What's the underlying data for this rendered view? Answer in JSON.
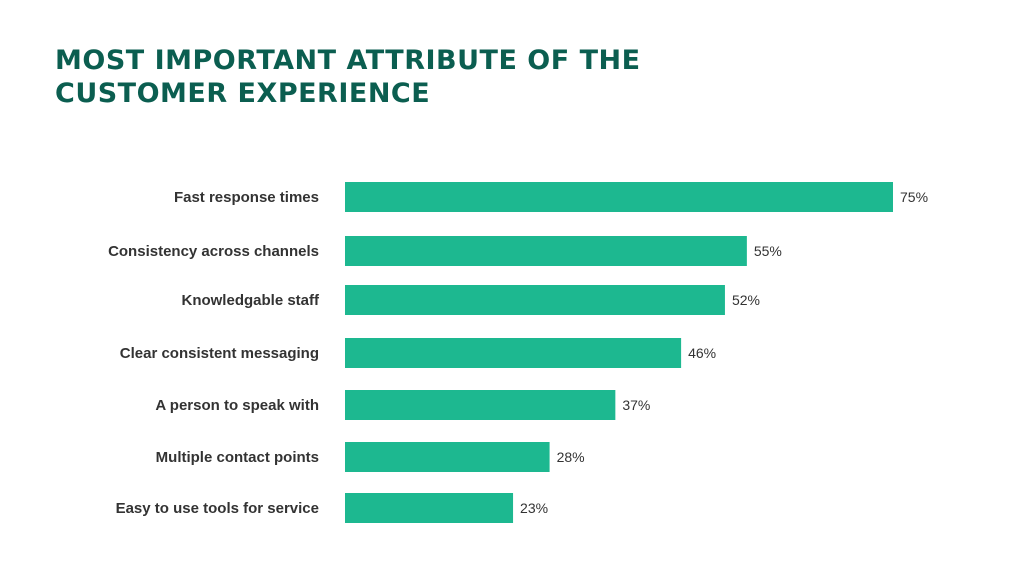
{
  "chart_data": {
    "type": "bar",
    "orientation": "horizontal",
    "title": "MOST IMPORTANT ATTRIBUTE OF THE CUSTOMER EXPERIENCE",
    "categories": [
      "Fast response times",
      "Consistency across channels",
      "Knowledgable staff",
      "Clear consistent messaging",
      "A person to speak with",
      "Multiple contact points",
      "Easy to use tools for service"
    ],
    "values": [
      75,
      55,
      52,
      46,
      37,
      28,
      23
    ],
    "data_labels": [
      "75%",
      "55%",
      "52%",
      "46%",
      "37%",
      "28%",
      "23%"
    ],
    "unit": "%",
    "xlim": [
      0,
      75
    ],
    "grid": false,
    "legend": "none",
    "colors": {
      "bar": "#1db890",
      "title": "#0b5e50",
      "text": "#333333"
    }
  }
}
